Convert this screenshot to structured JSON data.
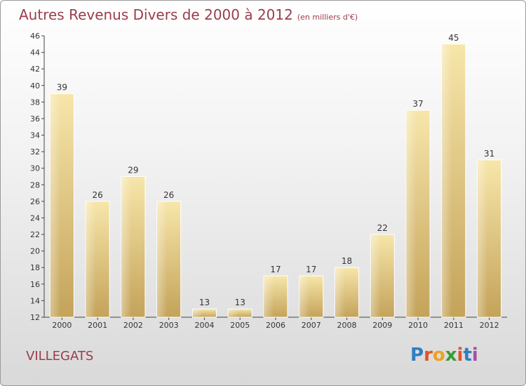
{
  "title": "Autres Revenus Divers de 2000 à 2012",
  "unit_note": "(en milliers d'€)",
  "place": "VILLEGATS",
  "logo": {
    "text": "Proxiti",
    "letters": [
      "P",
      "r",
      "o",
      "x",
      "i",
      "t",
      "i"
    ],
    "colors": [
      "#2f7fc1",
      "#e0532a",
      "#f0a020",
      "#3a9a3a",
      "#e0532a",
      "#2f7fc1",
      "#a94ca6"
    ]
  },
  "colors": {
    "title": "#9a3d4a",
    "bar_light": "#f5e2a3",
    "bar_dark": "#c9a75c"
  },
  "chart_data": {
    "type": "bar",
    "title": "Autres Revenus Divers de 2000 à 2012",
    "categories": [
      "2000",
      "2001",
      "2002",
      "2003",
      "2004",
      "2005",
      "2006",
      "2007",
      "2008",
      "2009",
      "2010",
      "2011",
      "2012"
    ],
    "values": [
      39,
      26,
      29,
      26,
      13,
      13,
      17,
      17,
      18,
      22,
      37,
      45,
      31
    ],
    "data_labels": [
      "39",
      "26",
      "29",
      "26",
      "13",
      "13",
      "17",
      "17",
      "18",
      "22",
      "37",
      "45",
      "31"
    ],
    "ylim": [
      12,
      46
    ],
    "yticks": [
      "12",
      "14",
      "16",
      "18",
      "20",
      "22",
      "24",
      "26",
      "28",
      "30",
      "32",
      "34",
      "36",
      "38",
      "40",
      "42",
      "44",
      "46"
    ],
    "grid": false,
    "legend": "none"
  }
}
